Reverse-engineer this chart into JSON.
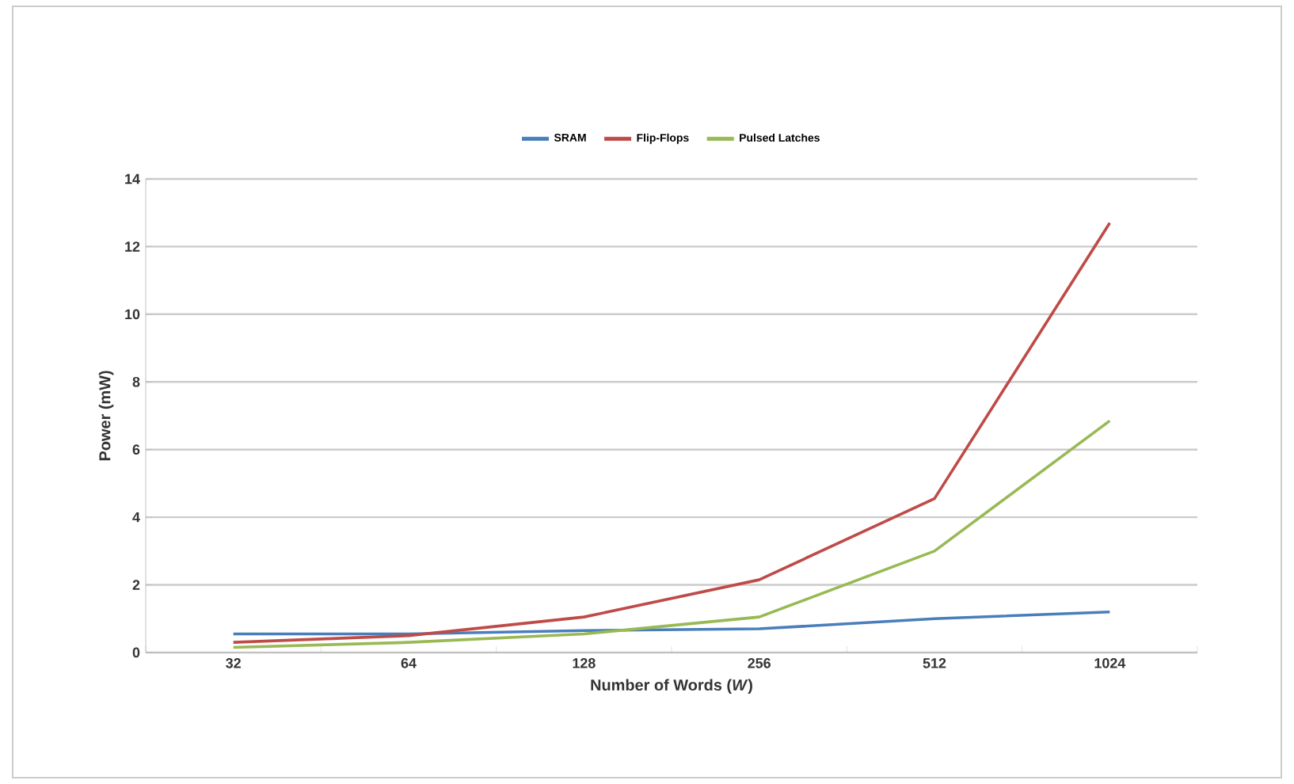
{
  "chart_data": {
    "type": "line",
    "xlabel": "Number of Words (*W*)",
    "ylabel": "Power (mW)",
    "categories": [
      "32",
      "64",
      "128",
      "256",
      "512",
      "1024"
    ],
    "series": [
      {
        "name": "SRAM",
        "color": "#4a7ebb",
        "values": [
          0.55,
          0.55,
          0.65,
          0.7,
          1.0,
          1.2
        ]
      },
      {
        "name": "Flip-Flops",
        "color": "#be4b48",
        "values": [
          0.3,
          0.5,
          1.05,
          2.15,
          4.55,
          12.7
        ]
      },
      {
        "name": "Pulsed Latches",
        "color": "#98b954",
        "values": [
          0.15,
          0.3,
          0.55,
          1.05,
          3.0,
          6.85
        ]
      }
    ],
    "ylim": [
      0,
      14
    ],
    "yticks": [
      0,
      2,
      4,
      6,
      8,
      10,
      12,
      14
    ],
    "grid": "y",
    "legend": "top",
    "marker": "none",
    "line_style": "solid"
  }
}
